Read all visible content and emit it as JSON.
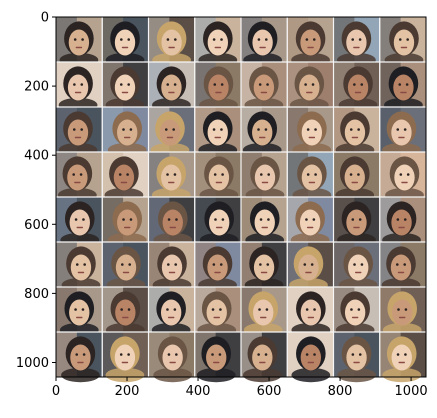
{
  "image": {
    "description": "",
    "grid_rows": 8,
    "grid_cols": 8,
    "x_range": [
      0,
      1042
    ],
    "y_range": [
      0,
      1042
    ],
    "background_color": "#ffffff",
    "grid_line_color": "#f5f5f5",
    "cell_palette": [
      "#6b6f7a",
      "#8a7a66",
      "#a7988a",
      "#c9b39d",
      "#5a4e46",
      "#e0d1c2",
      "#7f8aa0",
      "#b6a38f",
      "#4a545f",
      "#d7b59b",
      "#93a6b7",
      "#6f5f55",
      "#c7bfb6",
      "#9e7f6e",
      "#3f3f42",
      "#a98f7c"
    ],
    "face_palette": [
      "#e4c2a4",
      "#d7b08f",
      "#c99a7a",
      "#f0d2b9",
      "#b98366",
      "#e8c7ae"
    ],
    "hair_palette": [
      "#2b2422",
      "#4a3a31",
      "#6a5545",
      "#c7a46a",
      "#8c6b4f",
      "#1f1f23"
    ]
  },
  "axes": {
    "x_ticks": [
      "0",
      "200",
      "400",
      "600",
      "800",
      "1000"
    ],
    "y_ticks": [
      "0",
      "200",
      "400",
      "600",
      "800",
      "1000"
    ],
    "tick_values": [
      0,
      200,
      400,
      600,
      800,
      1000
    ]
  }
}
